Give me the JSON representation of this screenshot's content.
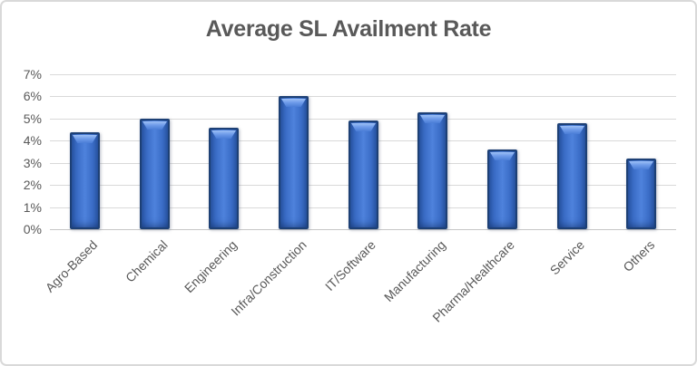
{
  "chart_data": {
    "type": "bar",
    "title": "Average SL Availment Rate",
    "categories": [
      "Agro-Based",
      "Chemical",
      "Engineering",
      "Infra/Construction",
      "IT/Software",
      "Manufacturing",
      "Pharma/Healthcare",
      "Service",
      "Others"
    ],
    "values": [
      4.4,
      5.0,
      4.6,
      6.0,
      4.9,
      5.3,
      3.6,
      4.8,
      3.2
    ],
    "unit": "%",
    "xlabel": "",
    "ylabel": "",
    "ylim": [
      0,
      7
    ],
    "ytick_step": 1,
    "ytick_labels": [
      "0%",
      "1%",
      "2%",
      "3%",
      "4%",
      "5%",
      "6%",
      "7%"
    ],
    "grid": true,
    "legend": false,
    "x_label_rotation_deg": -45,
    "colors": {
      "bar_fill_center": "#4e82dc",
      "bar_fill_mid": "#3a6cc6",
      "bar_fill_edge": "#2a57a6",
      "bar_bevel_highlight": "#9dc0f5",
      "bar_border": "#1d4075",
      "title_text": "#595959",
      "axis_text": "#595959",
      "gridline": "#d9d9d9",
      "baseline": "#c6c6c6",
      "background": "#ffffff",
      "frame_border": "#d9d9d9"
    }
  }
}
